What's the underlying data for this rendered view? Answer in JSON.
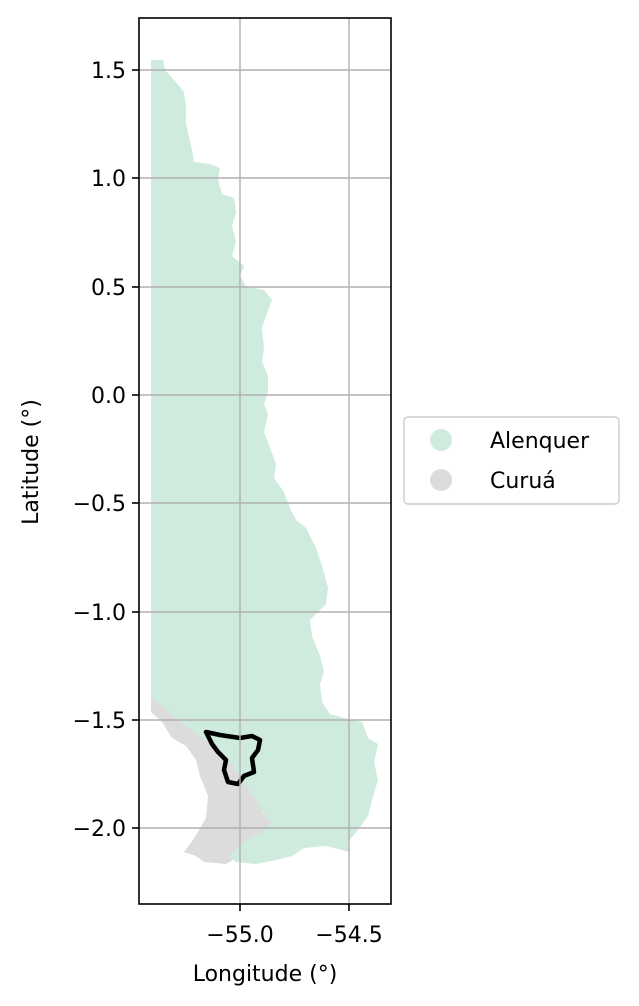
{
  "chart_data": {
    "type": "map",
    "title": "",
    "xlabel": "Longitude (°)",
    "ylabel": "Latitude (°)",
    "xlim": [
      -55.46,
      -54.31
    ],
    "ylim": [
      -2.37,
      1.74
    ],
    "xticks": [
      -55.0,
      -54.5
    ],
    "xtick_labels": [
      "−55.0",
      "−54.5"
    ],
    "yticks": [
      1.5,
      1.0,
      0.5,
      0.0,
      -0.5,
      -1.0,
      -1.5,
      -2.0
    ],
    "ytick_labels": [
      "1.5",
      "1.0",
      "0.5",
      "0.0",
      "−0.5",
      "−1.0",
      "−1.5",
      "−2.0"
    ],
    "grid": true,
    "legend_position": "right",
    "regions": [
      {
        "name": "Alenquer",
        "color": "#cfebdd"
      },
      {
        "name": "Curuá",
        "color": "#dcdcdc"
      }
    ],
    "highlight_outline": {
      "color": "#000000",
      "description": "outlined area"
    }
  }
}
